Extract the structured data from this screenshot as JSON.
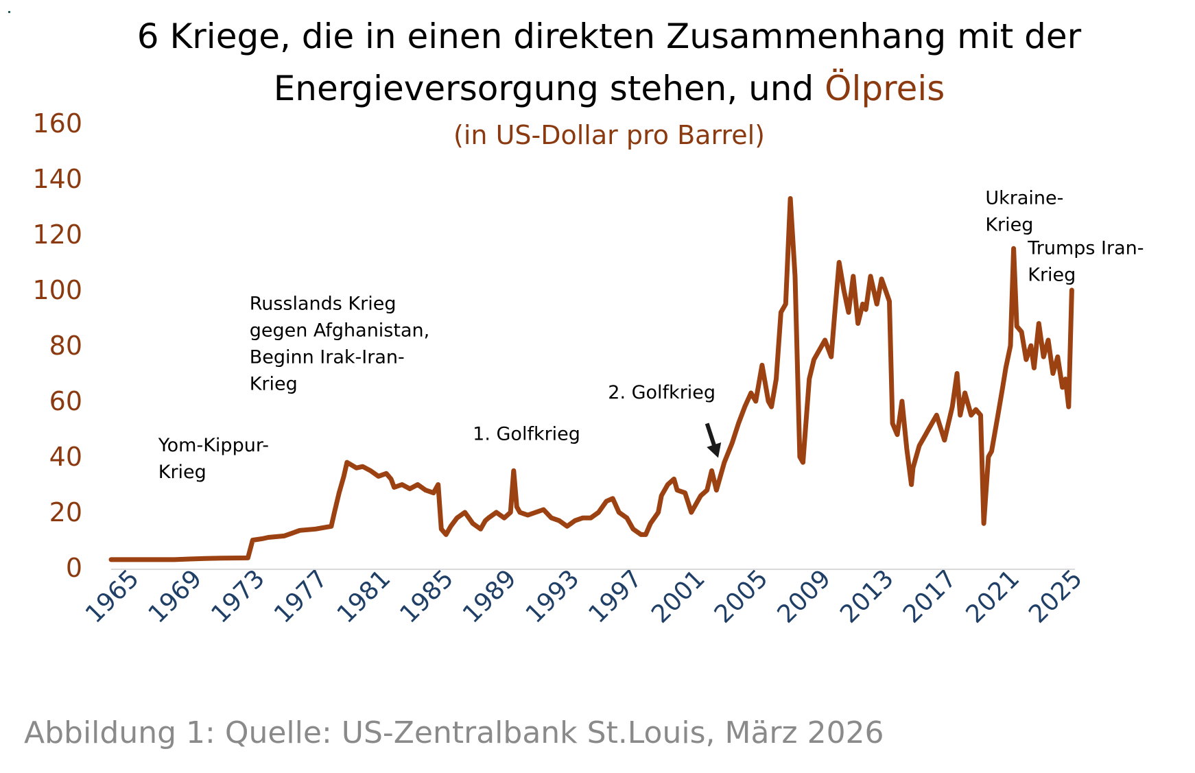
{
  "chart_data": {
    "type": "line",
    "title_line1": "6 Kriege, die in einen direkten Zusammenhang mit der",
    "title_line2_prefix": "Energieversorgung stehen, und ",
    "title_line2_accent": "Ölpreis",
    "subtitle": "(in US-Dollar pro Barrel)",
    "caption": "Abbildung 1: Quelle: US-Zentralbank St.Louis, März 2026",
    "colors": {
      "line": "#9c4212",
      "accent": "#8b3a10",
      "xtick": "#1f3f66",
      "axis": "#d9d9d9",
      "caption": "#8a8a8a"
    },
    "xlim": [
      1965,
      2026.3
    ],
    "ylim": [
      0,
      160
    ],
    "yticks": [
      0,
      20,
      40,
      60,
      80,
      100,
      120,
      140,
      160
    ],
    "xticks": [
      1965,
      1969,
      1973,
      1977,
      1981,
      1985,
      1989,
      1993,
      1997,
      2001,
      2005,
      2009,
      2013,
      2017,
      2021,
      2025
    ],
    "grid": false,
    "legend": "none",
    "series": [
      {
        "x": [
          1965,
          1966,
          1967,
          1969,
          1970,
          1971,
          1972,
          1973.7,
          1974.0,
          1974.6,
          1975,
          1976,
          1976.5,
          1977,
          1978,
          1978.5,
          1979,
          1979.2,
          1979.5,
          1979.8,
          1980,
          1980.3,
          1980.6,
          1981,
          1981.5,
          1982,
          1982.5,
          1982.8,
          1983,
          1983.5,
          1984,
          1984.5,
          1985,
          1985.5,
          1985.8,
          1986,
          1986.3,
          1986.6,
          1987,
          1987.5,
          1988,
          1988.5,
          1988.8,
          1989,
          1989.5,
          1990,
          1990.4,
          1990.6,
          1990.8,
          1991,
          1991.5,
          1992,
          1992.5,
          1993,
          1993.5,
          1994,
          1994.5,
          1995,
          1995.5,
          1996,
          1996.5,
          1996.9,
          1997.3,
          1997.8,
          1998.2,
          1998.7,
          1999,
          1999.3,
          1999.8,
          2000,
          2000.4,
          2000.8,
          2001,
          2001.5,
          2001.9,
          2002,
          2002.5,
          2002.9,
          2003.2,
          2003.5,
          2004,
          2004.5,
          2004.9,
          2005.3,
          2005.7,
          2006,
          2006.4,
          2006.8,
          2007,
          2007.3,
          2007.6,
          2007.9,
          2008.2,
          2008.5,
          2008.8,
          2009,
          2009.4,
          2009.7,
          2010,
          2010.4,
          2010.8,
          2011,
          2011.3,
          2011.6,
          2011.9,
          2012.2,
          2012.5,
          2012.8,
          2013,
          2013.3,
          2013.7,
          2014,
          2014.5,
          2014.7,
          2015,
          2015.3,
          2015.6,
          2015.9,
          2016,
          2016.4,
          2016.8,
          2017,
          2017.5,
          2018,
          2018.5,
          2018.8,
          2019,
          2019.3,
          2019.7,
          2020,
          2020.3,
          2020.5,
          2020.8,
          2021,
          2021.4,
          2021.7,
          2021.9,
          2022.2,
          2022.4,
          2022.6,
          2022.9,
          2023.2,
          2023.5,
          2023.7,
          2024,
          2024.3,
          2024.6,
          2024.9,
          2025.2,
          2025.5,
          2025.7,
          2025.9,
          2026.1
        ],
        "y": [
          3,
          3,
          3,
          3,
          3.2,
          3.4,
          3.5,
          3.6,
          10,
          10.5,
          11,
          11.5,
          12.5,
          13.5,
          14,
          14.5,
          15,
          20,
          27,
          33,
          38,
          37,
          36,
          36.5,
          35,
          33,
          34,
          32,
          29,
          30,
          28.5,
          30,
          28,
          27,
          30,
          14,
          12,
          15,
          18,
          20,
          16,
          14,
          17,
          18,
          20,
          18,
          20,
          35,
          22,
          20,
          19,
          20,
          21,
          18,
          17,
          15,
          17,
          18,
          18,
          20,
          24,
          25,
          20,
          18,
          14,
          12,
          12,
          16,
          20,
          26,
          30,
          32,
          28,
          27,
          20,
          21,
          26,
          28,
          35,
          28,
          38,
          45,
          52,
          58,
          63,
          60,
          73,
          60,
          58,
          68,
          92,
          95,
          133,
          105,
          40,
          38,
          68,
          75,
          78,
          82,
          76,
          90,
          110,
          100,
          92,
          105,
          88,
          95,
          93,
          105,
          95,
          104,
          96,
          52,
          48,
          60,
          43,
          30,
          36,
          44,
          48,
          50,
          55,
          46,
          58,
          70,
          55,
          63,
          55,
          57,
          55,
          16,
          40,
          42,
          55,
          65,
          72,
          80,
          115,
          87,
          85,
          75,
          80,
          72,
          88,
          76,
          82,
          70,
          76,
          65,
          68,
          58,
          100
        ]
      }
    ],
    "annotations": [
      {
        "lines": [
          "Yom-Kippur-",
          "Krieg"
        ],
        "x": 1968.0,
        "y": 42
      },
      {
        "lines": [
          "Russlands Krieg",
          "gegen Afghanistan,",
          "Beginn Irak-Iran-",
          "Krieg"
        ],
        "x": 1973.8,
        "y": 93
      },
      {
        "lines": [
          "1. Golfkrieg"
        ],
        "x": 1988.0,
        "y": 46
      },
      {
        "lines": [
          "2. Golfkrieg"
        ],
        "x": 1996.6,
        "y": 61
      },
      {
        "lines": [
          "Ukraine-",
          "Krieg"
        ],
        "x": 2020.6,
        "y": 131
      },
      {
        "lines": [
          "Trumps Iran-",
          "Krieg"
        ],
        "x": 2023.3,
        "y": 113
      }
    ],
    "arrow": {
      "x": 2002.9,
      "y_from": 52,
      "y_to": 39
    }
  }
}
